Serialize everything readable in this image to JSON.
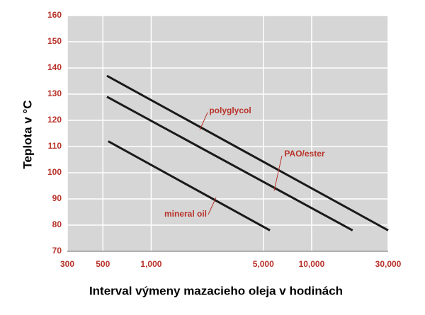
{
  "chart_data": {
    "type": "line",
    "x_label": "Interval výmeny mazacieho oleja v hodinách",
    "y_label": "Teplota v °C",
    "x_scale": "log",
    "xlim": [
      300,
      30000
    ],
    "xticks": [
      300,
      500,
      {
        "value": 1000,
        "label": "1,000"
      },
      {
        "value": 5000,
        "label": "5,000"
      },
      {
        "value": 10000,
        "label": "10,000"
      },
      {
        "value": 30000,
        "label": "30,000"
      }
    ],
    "ylim": [
      70,
      160
    ],
    "yticks": [
      70,
      80,
      90,
      100,
      110,
      120,
      130,
      140,
      150,
      160
    ],
    "grid": true,
    "series": [
      {
        "name": "polyglycol",
        "color": "#1a1a1a",
        "x": [
          530,
          30000
        ],
        "values": [
          137,
          78
        ]
      },
      {
        "name": "PAO/ester",
        "color": "#1a1a1a",
        "x": [
          530,
          18000
        ],
        "values": [
          129,
          78
        ]
      },
      {
        "name": "mineral oil",
        "color": "#1a1a1a",
        "x": [
          540,
          5500
        ],
        "values": [
          112,
          78
        ]
      }
    ]
  }
}
